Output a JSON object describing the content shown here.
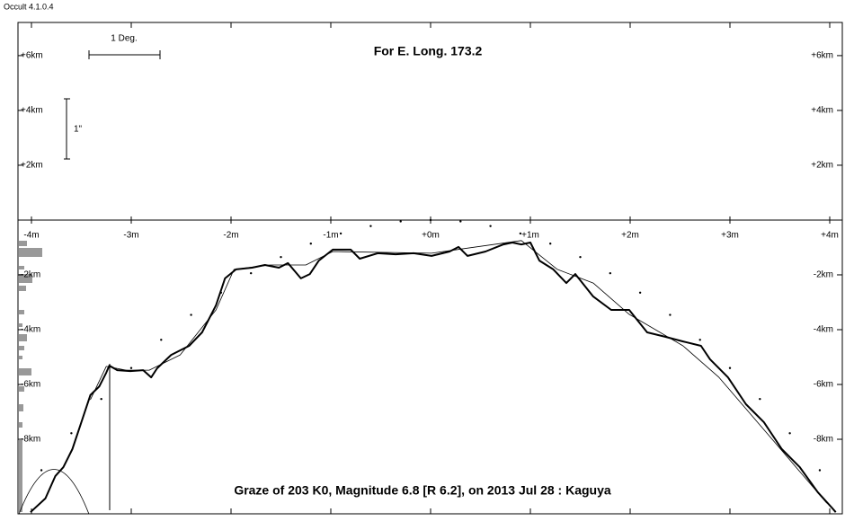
{
  "window_title": "Occult 4.1.0.4",
  "chart_data": {
    "type": "line",
    "title": "For E. Long. 173.2",
    "caption": "Graze of  203 K0,  Magnitude 6.8 [R 6.2],  on 2013 Jul 28  :  Kaguya",
    "scale_labels": [
      "1 Deg.",
      "1\""
    ],
    "xlim": [
      -4.135,
      4.126
    ],
    "ylim": [
      -10.72,
      7.21
    ],
    "xticks": [
      {
        "value": -4,
        "label": "-4m"
      },
      {
        "value": -3,
        "label": "-3m"
      },
      {
        "value": -2,
        "label": "-2m"
      },
      {
        "value": -1,
        "label": "-1m"
      },
      {
        "value": 0,
        "label": "+0m"
      },
      {
        "value": 1,
        "label": "+1m"
      },
      {
        "value": 2,
        "label": "+2m"
      },
      {
        "value": 3,
        "label": "+3m"
      },
      {
        "value": 4,
        "label": "+4m"
      }
    ],
    "yticks": [
      {
        "value": 6,
        "label": "+6km"
      },
      {
        "value": 4,
        "label": "+4km"
      },
      {
        "value": 2,
        "label": "+2km"
      },
      {
        "value": -2,
        "label": "-2km"
      },
      {
        "value": -4,
        "label": "-4km"
      },
      {
        "value": -6,
        "label": "-6km"
      },
      {
        "value": -8,
        "label": "-8km"
      }
    ],
    "series": [
      {
        "color": "#000000",
        "style": "solid",
        "width": 2,
        "x": [
          -4.01,
          -3.86,
          -3.76,
          -3.68,
          -3.59,
          -3.5,
          -3.41,
          -3.32,
          -3.25,
          -3.22,
          -3.14,
          -3.01,
          -2.88,
          -2.8,
          -2.74,
          -2.6,
          -2.42,
          -2.29,
          -2.15,
          -2.06,
          -1.95,
          -1.79,
          -1.66,
          -1.52,
          -1.43,
          -1.3,
          -1.21,
          -1.12,
          -0.98,
          -0.8,
          -0.71,
          -0.53,
          -0.35,
          -0.17,
          0.01,
          0.19,
          0.28,
          0.37,
          0.55,
          0.73,
          0.82,
          0.91,
          1.0,
          1.09,
          1.23,
          1.36,
          1.45,
          1.63,
          1.81,
          1.99,
          2.17,
          2.35,
          2.53,
          2.71,
          2.8,
          2.98,
          3.16,
          3.34,
          3.52,
          3.7,
          3.88,
          4.02,
          4.06
        ],
        "values": [
          -10.66,
          -10.16,
          -9.34,
          -9.02,
          -8.36,
          -7.38,
          -6.39,
          -6.07,
          -5.57,
          -5.31,
          -5.48,
          -5.51,
          -5.48,
          -5.74,
          -5.41,
          -4.92,
          -4.59,
          -4.1,
          -3.11,
          -2.13,
          -1.8,
          -1.74,
          -1.64,
          -1.74,
          -1.57,
          -2.13,
          -1.97,
          -1.48,
          -1.08,
          -1.08,
          -1.41,
          -1.21,
          -1.25,
          -1.21,
          -1.31,
          -1.15,
          -0.98,
          -1.31,
          -1.15,
          -0.89,
          -0.82,
          -0.89,
          -0.82,
          -1.48,
          -1.8,
          -2.3,
          -1.97,
          -2.79,
          -3.28,
          -3.28,
          -4.1,
          -4.26,
          -4.43,
          -4.59,
          -5.08,
          -5.74,
          -6.72,
          -7.38,
          -8.36,
          -9.02,
          -9.93,
          -10.49,
          -10.66
        ]
      },
      {
        "color": "#000000",
        "style": "solid",
        "width": 0.8,
        "x": [
          -3.41,
          -3.25,
          -3.05,
          -2.82,
          -2.51,
          -2.15,
          -1.97,
          -1.61,
          -1.25,
          -0.98,
          0.01,
          0.91,
          1.27,
          1.63,
          1.99,
          2.53,
          2.89,
          3.43,
          3.97
        ],
        "values": [
          -6.56,
          -5.34,
          -5.48,
          -5.48,
          -4.92,
          -3.28,
          -1.8,
          -1.64,
          -1.64,
          -1.15,
          -1.21,
          -0.75,
          -1.8,
          -2.3,
          -3.44,
          -4.59,
          -5.74,
          -8.03,
          -10.33
        ]
      },
      {
        "color": "#000000",
        "style": "dots",
        "width": 1.2,
        "x": [
          -3.9,
          -3.6,
          -3.3,
          -3.0,
          -2.7,
          -2.4,
          -2.1,
          -1.8,
          -1.5,
          -1.2,
          -0.9,
          -0.6,
          -0.3,
          0,
          0.3,
          0.6,
          0.9,
          1.2,
          1.5,
          1.8,
          2.1,
          2.4,
          2.7,
          3.0,
          3.3,
          3.6,
          3.9
        ],
        "values": [
          -9.13,
          -7.78,
          -6.53,
          -5.4,
          -4.37,
          -3.46,
          -2.65,
          -1.94,
          -1.35,
          -0.86,
          -0.49,
          -0.22,
          -0.05,
          0,
          -0.05,
          -0.22,
          -0.49,
          -0.86,
          -1.35,
          -1.94,
          -2.65,
          -3.46,
          -4.37,
          -5.4,
          -6.53,
          -7.78,
          -9.13
        ]
      }
    ]
  }
}
